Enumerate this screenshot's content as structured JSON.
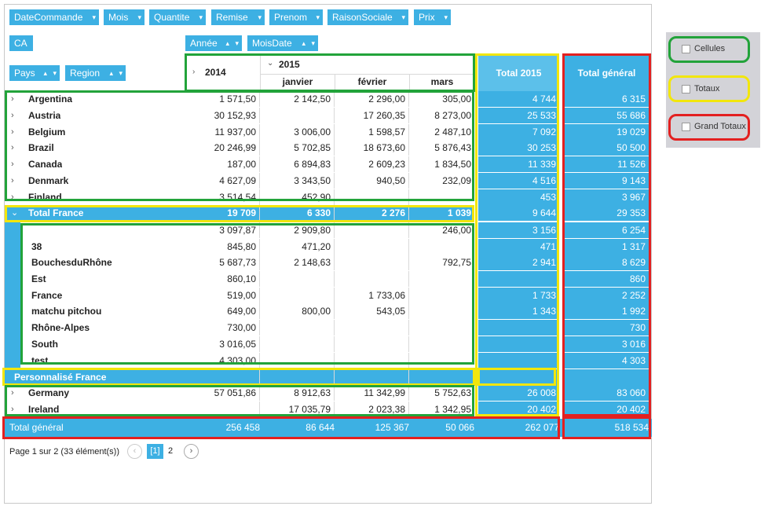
{
  "filter_fields": [
    "DateCommande",
    "Mois",
    "Quantite",
    "Remise",
    "Prenom",
    "RaisonSociale",
    "Prix"
  ],
  "data_field": "CA",
  "column_fields": [
    "Année",
    "MoisDate"
  ],
  "row_fields": [
    "Pays",
    "Region"
  ],
  "headers": {
    "y2014": "2014",
    "y2015": "2015",
    "months": [
      "janvier",
      "février",
      "mars"
    ],
    "total2015": "Total 2015",
    "grand": "Total général"
  },
  "rows": [
    {
      "label": "Argentina",
      "v2014": "1 571,50",
      "jan": "2 142,50",
      "fev": "2 296,00",
      "mar": "305,00",
      "t2015": "4 744",
      "total": "6 315",
      "type": "country"
    },
    {
      "label": "Austria",
      "v2014": "30 152,93",
      "jan": "",
      "fev": "17 260,35",
      "mar": "8 273,00",
      "t2015": "25 533",
      "total": "55 686",
      "type": "country"
    },
    {
      "label": "Belgium",
      "v2014": "11 937,00",
      "jan": "3 006,00",
      "fev": "1 598,57",
      "mar": "2 487,10",
      "t2015": "7 092",
      "total": "19 029",
      "type": "country"
    },
    {
      "label": "Brazil",
      "v2014": "20 246,99",
      "jan": "5 702,85",
      "fev": "18 673,60",
      "mar": "5 876,43",
      "t2015": "30 253",
      "total": "50 500",
      "type": "country"
    },
    {
      "label": "Canada",
      "v2014": "187,00",
      "jan": "6 894,83",
      "fev": "2 609,23",
      "mar": "1 834,50",
      "t2015": "11 339",
      "total": "11 526",
      "type": "country"
    },
    {
      "label": "Denmark",
      "v2014": "4 627,09",
      "jan": "3 343,50",
      "fev": "940,50",
      "mar": "232,09",
      "t2015": "4 516",
      "total": "9 143",
      "type": "country"
    },
    {
      "label": "Finland",
      "v2014": "3 514,54",
      "jan": "452,90",
      "fev": "",
      "mar": "",
      "t2015": "453",
      "total": "3 967",
      "type": "country"
    },
    {
      "label": "Total France",
      "v2014": "19 709",
      "jan": "6 330",
      "fev": "2 276",
      "mar": "1 039",
      "t2015": "9 644",
      "total": "29 353",
      "type": "subtotal"
    },
    {
      "label": "",
      "v2014": "3 097,87",
      "jan": "2 909,80",
      "fev": "",
      "mar": "246,00",
      "t2015": "3 156",
      "total": "6 254",
      "type": "region"
    },
    {
      "label": "38",
      "v2014": "845,80",
      "jan": "471,20",
      "fev": "",
      "mar": "",
      "t2015": "471",
      "total": "1 317",
      "type": "region"
    },
    {
      "label": "BouchesduRhône",
      "v2014": "5 687,73",
      "jan": "2 148,63",
      "fev": "",
      "mar": "792,75",
      "t2015": "2 941",
      "total": "8 629",
      "type": "region"
    },
    {
      "label": "Est",
      "v2014": "860,10",
      "jan": "",
      "fev": "",
      "mar": "",
      "t2015": "",
      "total": "860",
      "type": "region"
    },
    {
      "label": "France",
      "v2014": "519,00",
      "jan": "",
      "fev": "1 733,06",
      "mar": "",
      "t2015": "1 733",
      "total": "2 252",
      "type": "region"
    },
    {
      "label": "matchu pitchou",
      "v2014": "649,00",
      "jan": "800,00",
      "fev": "543,05",
      "mar": "",
      "t2015": "1 343",
      "total": "1 992",
      "type": "region"
    },
    {
      "label": "Rhône-Alpes",
      "v2014": "730,00",
      "jan": "",
      "fev": "",
      "mar": "",
      "t2015": "",
      "total": "730",
      "type": "region"
    },
    {
      "label": "South",
      "v2014": "3 016,05",
      "jan": "",
      "fev": "",
      "mar": "",
      "t2015": "",
      "total": "3 016",
      "type": "region"
    },
    {
      "label": "test",
      "v2014": "4 303,00",
      "jan": "",
      "fev": "",
      "mar": "",
      "t2015": "",
      "total": "4 303",
      "type": "region"
    },
    {
      "label": "Personnalisé France",
      "v2014": "",
      "jan": "",
      "fev": "",
      "mar": "",
      "t2015": "",
      "total": "",
      "type": "custom"
    },
    {
      "label": "Germany",
      "v2014": "57 051,86",
      "jan": "8 912,63",
      "fev": "11 342,99",
      "mar": "5 752,63",
      "t2015": "26 008",
      "total": "83 060",
      "type": "country"
    },
    {
      "label": "Ireland",
      "v2014": "",
      "jan": "17 035,79",
      "fev": "2 023,38",
      "mar": "1 342,95",
      "t2015": "20 402",
      "total": "20 402",
      "type": "country"
    }
  ],
  "grand_total": {
    "label": "Total général",
    "v2014": "256 458",
    "jan": "86 644",
    "fev": "125 367",
    "mar": "50 066",
    "t2015": "262 077",
    "total": "518 534"
  },
  "pager": {
    "text": "Page 1 sur 2 (33 élément(s))",
    "current": "[1]",
    "next": "2",
    "prev_icon": "‹",
    "next_icon": "›"
  },
  "legend": [
    "Cellules",
    "Totaux",
    "Grand Totaux"
  ],
  "colors": {
    "header_blue": "#3db0e3",
    "green": "#22a33a",
    "yellow": "#f2e60c",
    "red": "#e32020"
  }
}
